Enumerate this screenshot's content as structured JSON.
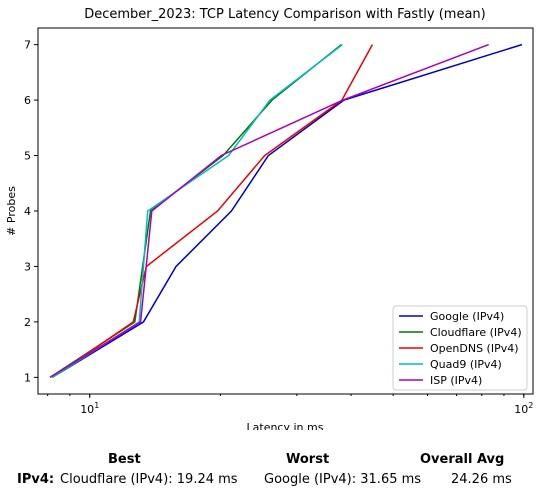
{
  "chart_data": {
    "type": "line",
    "title": "December_2023: TCP Latency Comparison with Fastly (mean)",
    "xlabel": "Latency in ms",
    "ylabel": "# Probes",
    "xscale": "log",
    "xlim": [
      7.6,
      105
    ],
    "ylim": [
      0.7,
      7.3
    ],
    "xticks": [
      {
        "value": 10,
        "label": "10^1"
      },
      {
        "value": 100,
        "label": "10^2"
      }
    ],
    "yticks": [
      1,
      2,
      3,
      4,
      5,
      6,
      7
    ],
    "grid": false,
    "legend_position": "lower-right",
    "series": [
      {
        "name": "Google (IPv4)",
        "color": "#0000cc",
        "points": [
          [
            8.2,
            1
          ],
          [
            13.3,
            2
          ],
          [
            15.8,
            3
          ],
          [
            21.2,
            4
          ],
          [
            25.8,
            5
          ],
          [
            38.5,
            6
          ],
          [
            99.0,
            7
          ]
        ]
      },
      {
        "name": "Cloudflare (IPv4)",
        "color": "#007700",
        "points": [
          [
            8.1,
            1
          ],
          [
            12.7,
            2
          ],
          [
            13.8,
            4
          ],
          [
            20.3,
            5
          ],
          [
            26.3,
            6
          ],
          [
            38.0,
            7
          ]
        ]
      },
      {
        "name": "OpenDNS (IPv4)",
        "color": "#ee0000",
        "points": [
          [
            8.2,
            1
          ],
          [
            12.6,
            2
          ],
          [
            13.5,
            3
          ],
          [
            19.7,
            4
          ],
          [
            25.3,
            5
          ],
          [
            38.1,
            6
          ],
          [
            44.8,
            7
          ]
        ]
      },
      {
        "name": "Quad9 (IPv4)",
        "color": "#00bbbb",
        "points": [
          [
            8.2,
            1
          ],
          [
            13.0,
            2
          ],
          [
            13.6,
            4
          ],
          [
            20.9,
            5
          ],
          [
            26.0,
            6
          ],
          [
            38.2,
            7
          ]
        ]
      },
      {
        "name": "ISP (IPv4)",
        "color": "#aa00bb",
        "points": [
          [
            8.1,
            1
          ],
          [
            13.1,
            2
          ],
          [
            13.9,
            4
          ],
          [
            20.1,
            5
          ],
          [
            38.3,
            6
          ],
          [
            83.0,
            7
          ]
        ]
      }
    ]
  },
  "summary": {
    "best_header": "Best",
    "worst_header": "Worst",
    "avg_header": "Overall Avg",
    "row_label": "IPv4:",
    "best_value": "Cloudflare (IPv4): 19.24 ms",
    "worst_value": "Google (IPv4): 31.65 ms",
    "avg_value": "24.26 ms"
  }
}
